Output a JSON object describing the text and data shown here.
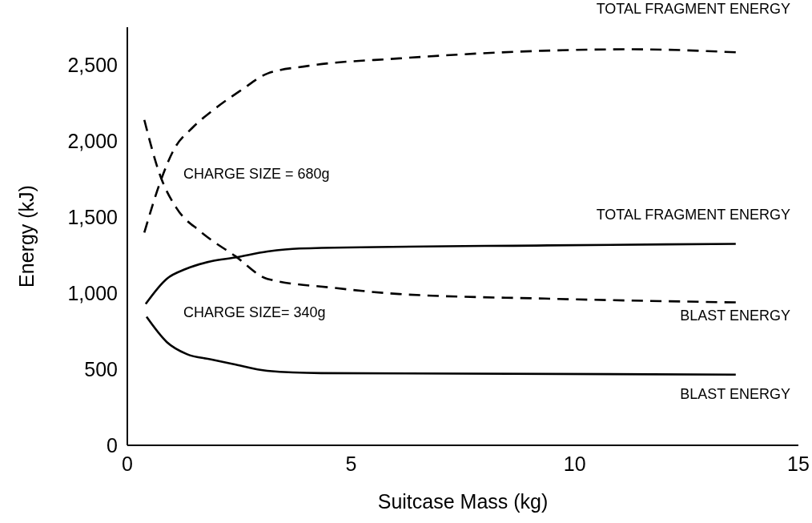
{
  "chart_data": {
    "type": "line",
    "xlabel": "Suitcase Mass (kg)",
    "ylabel": "Energy (kJ)",
    "xlim": [
      0,
      15
    ],
    "xticks": [
      0,
      5,
      10,
      15
    ],
    "ylim": [
      0,
      2750
    ],
    "yticks": [
      0,
      {
        "value": 500,
        "label": "500"
      },
      {
        "value": 1000,
        "label": "1,000"
      },
      {
        "value": 1500,
        "label": "1,500"
      },
      {
        "value": 2000,
        "label": "2,000"
      },
      {
        "value": 2500,
        "label": "2,500"
      }
    ],
    "grid": false,
    "marker": "none",
    "series": [
      {
        "name": "TOTAL FRAGMENT ENERGY",
        "color": "#000000",
        "line_style": "dashed",
        "x": [
          0.38,
          0.74,
          1.04,
          1.46,
          1.94,
          2.54,
          3.13,
          4.03,
          6.08,
          9.28,
          11.3,
          13.6
        ],
        "values": [
          1400,
          1735,
          1945,
          2090,
          2210,
          2335,
          2445,
          2495,
          2545,
          2595,
          2605,
          2585
        ]
      },
      {
        "name": "BLAST ENERGY",
        "color": "#000000",
        "line_style": "dashed",
        "x": [
          0.38,
          0.74,
          1.1,
          1.64,
          2.41,
          3.13,
          4.64,
          6.08,
          9.33,
          13.6
        ],
        "values": [
          2140,
          1770,
          1560,
          1405,
          1245,
          1095,
          1035,
          995,
          965,
          940
        ]
      },
      {
        "name": "TOTAL FRAGMENT ENERGY",
        "color": "#000000",
        "line_style": "solid",
        "x": [
          0.41,
          0.88,
          1.31,
          1.87,
          2.41,
          3.13,
          3.85,
          9.4,
          13.6
        ],
        "values": [
          930,
          1095,
          1160,
          1210,
          1235,
          1275,
          1295,
          1315,
          1325
        ]
      },
      {
        "name": "BLAST ENERGY",
        "color": "#000000",
        "line_style": "solid",
        "x": [
          0.43,
          0.88,
          1.33,
          1.87,
          2.36,
          3.13,
          4.33,
          13.6
        ],
        "values": [
          845,
          680,
          600,
          565,
          535,
          490,
          475,
          465
        ]
      }
    ],
    "annotations": [
      "CHARGE SIZE = 680g",
      "CHARGE SIZE= 340g"
    ]
  }
}
